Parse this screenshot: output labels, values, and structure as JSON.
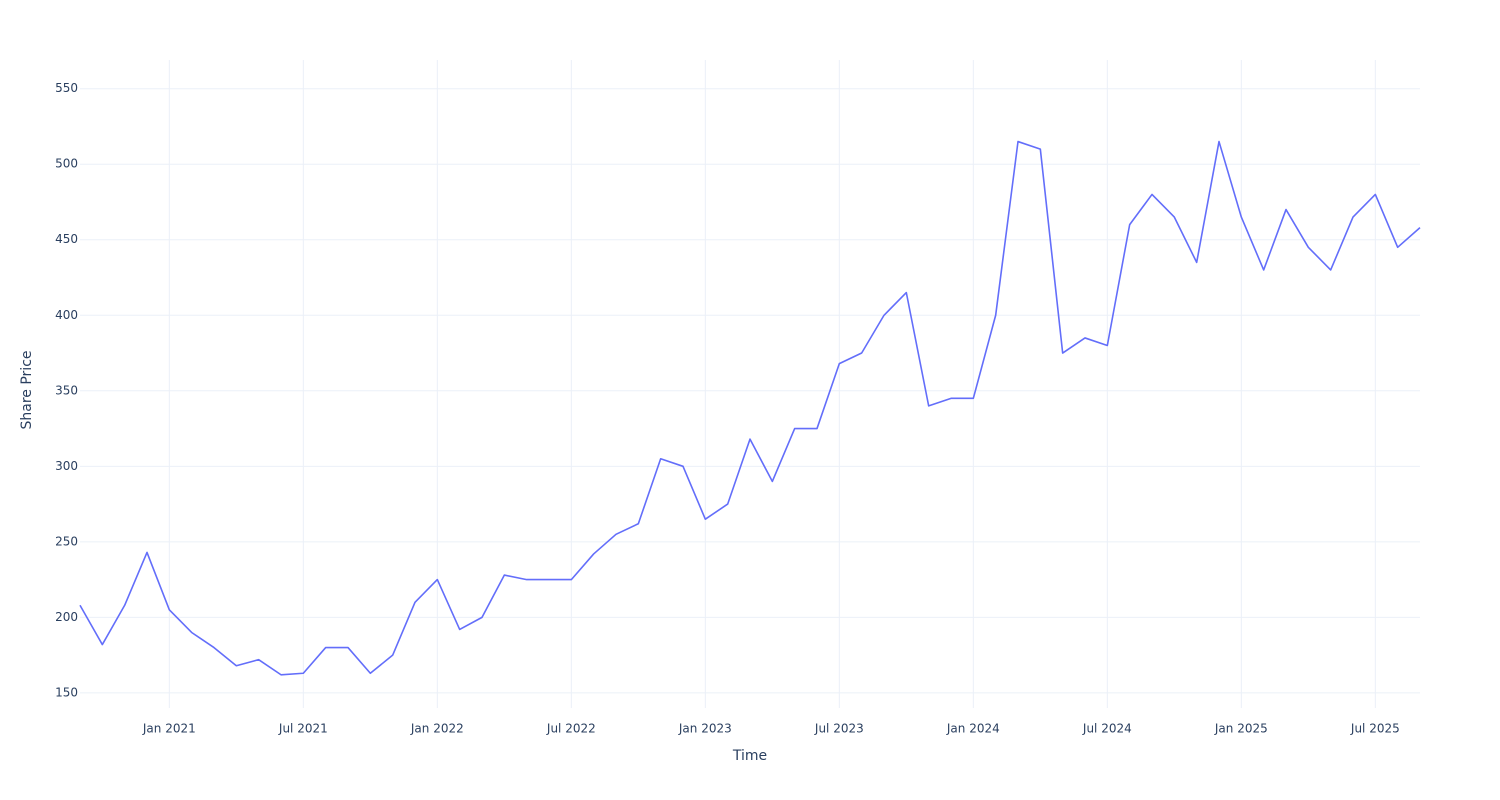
{
  "chart_data": {
    "type": "line",
    "xlabel": "Time",
    "ylabel": "Share Price",
    "x": [
      "2020-09",
      "2020-10",
      "2020-11",
      "2020-12",
      "2021-01",
      "2021-02",
      "2021-03",
      "2021-04",
      "2021-05",
      "2021-06",
      "2021-07",
      "2021-08",
      "2021-09",
      "2021-10",
      "2021-11",
      "2021-12",
      "2022-01",
      "2022-02",
      "2022-03",
      "2022-04",
      "2022-05",
      "2022-06",
      "2022-07",
      "2022-08",
      "2022-09",
      "2022-10",
      "2022-11",
      "2022-12",
      "2023-01",
      "2023-02",
      "2023-03",
      "2023-04",
      "2023-05",
      "2023-06",
      "2023-07",
      "2023-08",
      "2023-09",
      "2023-10",
      "2023-11",
      "2023-12",
      "2024-01",
      "2024-02",
      "2024-03",
      "2024-04",
      "2024-05",
      "2024-06",
      "2024-07",
      "2024-08",
      "2024-09",
      "2024-10",
      "2024-11",
      "2024-12",
      "2025-01",
      "2025-02",
      "2025-03",
      "2025-04",
      "2025-05",
      "2025-06",
      "2025-07",
      "2025-08",
      "2025-09"
    ],
    "values": [
      208,
      182,
      208,
      243,
      205,
      190,
      180,
      168,
      172,
      162,
      163,
      180,
      180,
      163,
      175,
      210,
      225,
      192,
      200,
      228,
      225,
      225,
      225,
      242,
      255,
      262,
      305,
      300,
      265,
      275,
      318,
      290,
      325,
      325,
      368,
      375,
      400,
      415,
      340,
      345,
      345,
      400,
      515,
      510,
      375,
      385,
      380,
      460,
      480,
      465,
      435,
      515,
      465,
      430,
      470,
      445,
      430,
      465,
      480,
      445,
      458
    ],
    "color": "#636efa",
    "xlim": [
      "2020-09",
      "2025-09"
    ],
    "xticks": [
      {
        "value": "2021-01",
        "label": "Jan 2021"
      },
      {
        "value": "2021-07",
        "label": "Jul 2021"
      },
      {
        "value": "2022-01",
        "label": "Jan 2022"
      },
      {
        "value": "2022-07",
        "label": "Jul 2022"
      },
      {
        "value": "2023-01",
        "label": "Jan 2023"
      },
      {
        "value": "2023-07",
        "label": "Jul 2023"
      },
      {
        "value": "2024-01",
        "label": "Jan 2024"
      },
      {
        "value": "2024-07",
        "label": "Jul 2024"
      },
      {
        "value": "2025-01",
        "label": "Jan 2025"
      },
      {
        "value": "2025-07",
        "label": "Jul 2025"
      }
    ],
    "ylim": [
      140,
      569
    ],
    "yticks": [
      150,
      200,
      250,
      300,
      350,
      400,
      450,
      500,
      550
    ],
    "grid": true
  }
}
